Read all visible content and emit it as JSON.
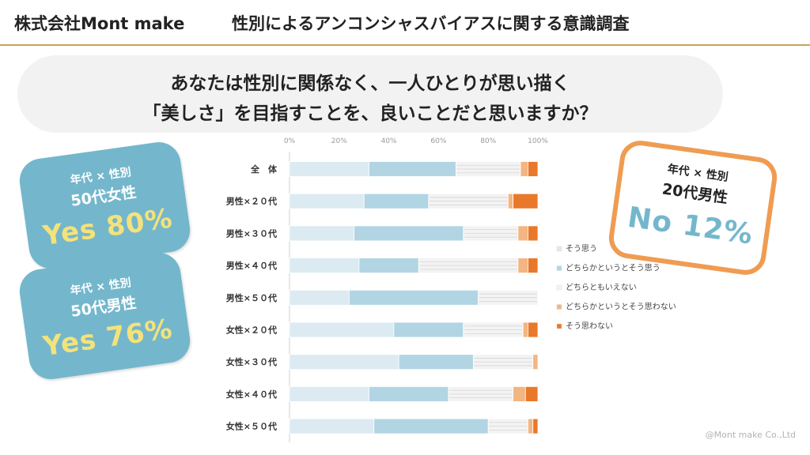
{
  "header": {
    "company": "株式会社Mont make",
    "title": "性別によるアンコンシャスバイアスに関する意識調査"
  },
  "question": {
    "line1": "あなたは性別に関係なく、一人ひとりが思い描く",
    "line2": "「美しさ」を目指すことを、良いことだと思いますか？"
  },
  "badges": [
    {
      "category": "年代 × 性別",
      "segment": "50代女性",
      "highlight": "Yes 80%"
    },
    {
      "category": "年代 × 性別",
      "segment": "50代男性",
      "highlight": "Yes 76%"
    },
    {
      "category": "年代 × 性別",
      "segment": "20代男性",
      "highlight": "No 12%"
    }
  ],
  "colors": {
    "series": [
      "#dcebf1",
      "#b2d5e3",
      "#f3f3f3",
      "#f3b581",
      "#e9782a"
    ],
    "badge_blue": "#74b7cc",
    "badge_orange": "#ef9c52",
    "highlight_yellow": "#f4e27a",
    "header_rule": "#c8a35a"
  },
  "chart_data": {
    "type": "bar",
    "orientation": "horizontal",
    "stacked": true,
    "percent_axis": true,
    "xlim": [
      0,
      100
    ],
    "x_ticks": [
      "0%",
      "20%",
      "40%",
      "60%",
      "80%",
      "100%"
    ],
    "categories": [
      "全　体",
      "男性×２０代",
      "男性×３０代",
      "男性×４０代",
      "男性×５０代",
      "女性×２０代",
      "女性×３０代",
      "女性×４０代",
      "女性×５０代"
    ],
    "series": [
      {
        "name": "そう思う",
        "values": [
          32,
          30,
          26,
          28,
          24,
          42,
          44,
          32,
          34
        ]
      },
      {
        "name": "どちらかというとそう思う",
        "values": [
          35,
          26,
          44,
          24,
          52,
          28,
          30,
          32,
          46
        ]
      },
      {
        "name": "どちらともいえない",
        "values": [
          26,
          32,
          22,
          40,
          24,
          24,
          24,
          26,
          16
        ]
      },
      {
        "name": "どちらかというとそう思わない",
        "values": [
          3,
          2,
          4,
          4,
          0,
          2,
          2,
          5,
          2
        ]
      },
      {
        "name": "そう思わない",
        "values": [
          4,
          10,
          4,
          4,
          0,
          4,
          0,
          5,
          2
        ]
      }
    ],
    "grid": false,
    "legend_position": "right"
  },
  "footer": "@Mont make Co.,Ltd"
}
